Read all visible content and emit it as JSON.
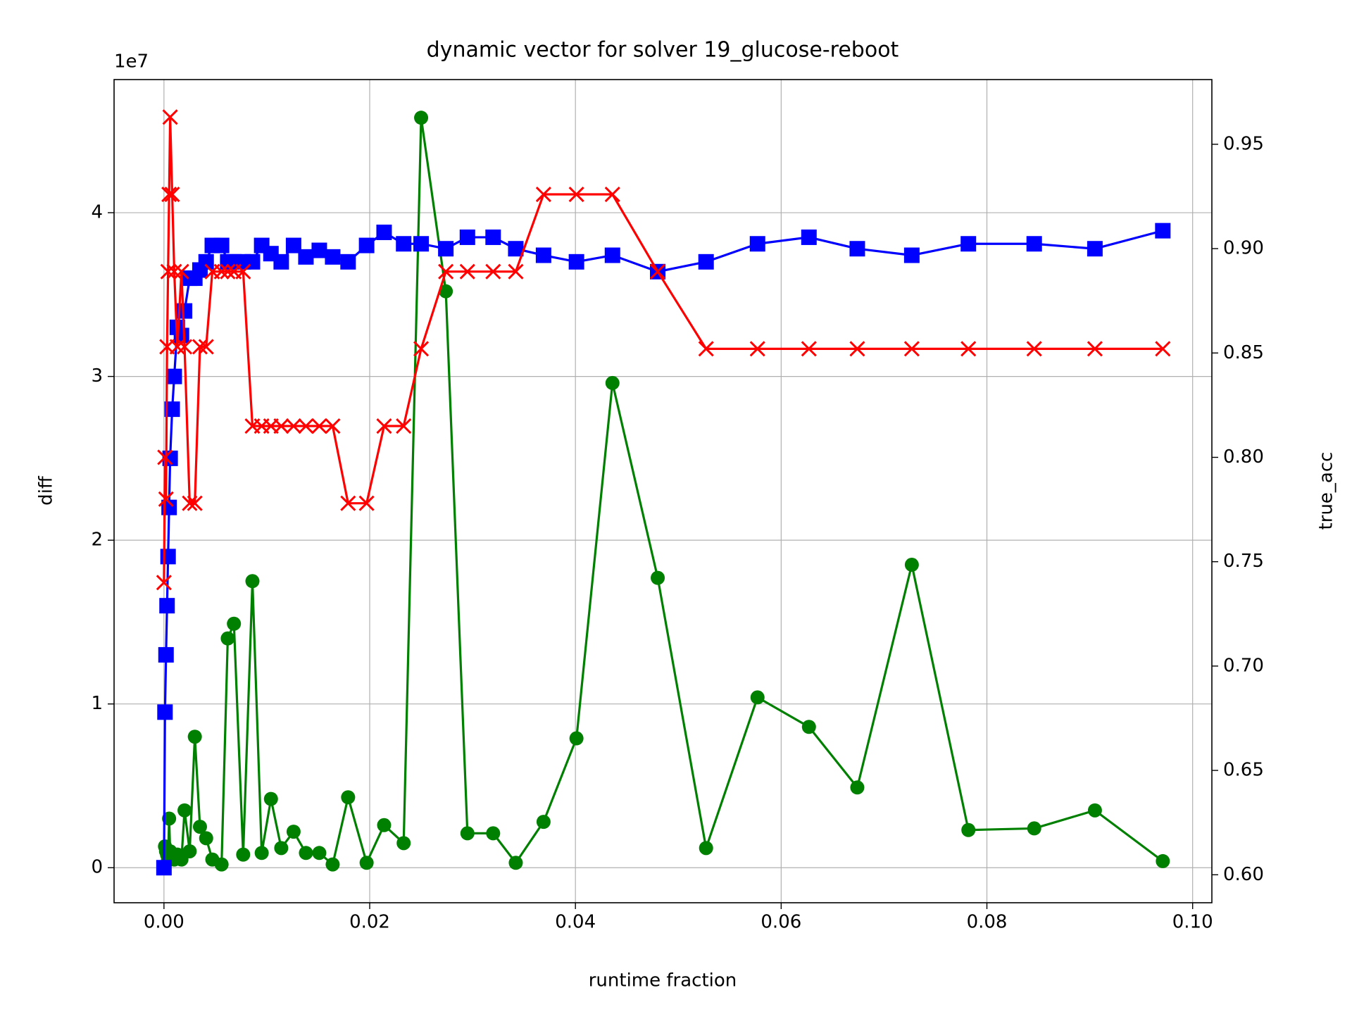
{
  "chart_data": {
    "type": "line",
    "title": "dynamic vector for solver 19_glucose-reboot",
    "xlabel": "runtime fraction",
    "ylabel": "diff",
    "ylabel_color": "green",
    "y2label": "true_acc",
    "y2label_color": "red",
    "y_offset_label": "1e7",
    "grid": true,
    "x": [
      0.0,
      0.0001,
      0.0002,
      0.0003,
      0.0004,
      0.0005,
      0.0006,
      0.0008,
      0.001,
      0.0013,
      0.0017,
      0.002,
      0.0025,
      0.003,
      0.0035,
      0.0041,
      0.0047,
      0.0056,
      0.0062,
      0.0068,
      0.0077,
      0.0086,
      0.0095,
      0.0104,
      0.0114,
      0.0126,
      0.0138,
      0.0151,
      0.0164,
      0.0179,
      0.0197,
      0.0214,
      0.0233,
      0.025,
      0.0274,
      0.0295,
      0.032,
      0.0342,
      0.0369,
      0.0401,
      0.0436,
      0.048,
      0.0527,
      0.0577,
      0.0627,
      0.0674,
      0.0727,
      0.0782,
      0.0846,
      0.0905,
      0.0971
    ],
    "series": [
      {
        "color": "green",
        "marker": "circle",
        "axis": "y",
        "values": [
          0.0,
          0.13,
          0.1,
          0.08,
          0.05,
          0.3,
          0.1,
          0.06,
          0.05,
          0.08,
          0.05,
          0.35,
          0.1,
          0.8,
          0.25,
          0.18,
          0.05,
          0.02,
          1.4,
          1.49,
          0.08,
          1.75,
          0.09,
          0.42,
          0.12,
          0.22,
          0.09,
          0.09,
          0.02,
          0.43,
          0.03,
          0.26,
          0.15,
          4.58,
          3.52,
          0.21,
          0.21,
          0.03,
          0.28,
          0.79,
          2.96,
          1.77,
          0.12,
          1.04,
          0.86,
          0.49,
          1.85,
          0.23,
          0.24,
          0.35,
          0.04
        ]
      },
      {
        "color": "blue",
        "marker": "square",
        "axis": "y",
        "values": [
          0.0,
          0.95,
          1.3,
          1.6,
          1.9,
          2.2,
          2.5,
          2.8,
          3.0,
          3.3,
          3.25,
          3.4,
          3.6,
          3.6,
          3.65,
          3.7,
          3.8,
          3.8,
          3.7,
          3.7,
          3.7,
          3.7,
          3.8,
          3.75,
          3.7,
          3.8,
          3.73,
          3.77,
          3.73,
          3.7,
          3.8,
          3.88,
          3.81,
          3.81,
          3.78,
          3.85,
          3.85,
          3.78,
          3.74,
          3.7,
          3.74,
          3.64,
          3.7,
          3.81,
          3.85,
          3.78,
          3.74,
          3.81,
          3.81,
          3.78,
          3.89
        ]
      },
      {
        "color": "red",
        "marker": "x",
        "axis": "y2",
        "values": [
          0.74,
          0.8,
          0.78,
          0.853,
          0.889,
          0.926,
          0.963,
          0.926,
          0.889,
          0.853,
          0.889,
          0.853,
          0.778,
          0.778,
          0.853,
          0.853,
          0.889,
          0.889,
          0.889,
          0.889,
          0.889,
          0.815,
          0.815,
          0.815,
          0.815,
          0.815,
          0.815,
          0.815,
          0.815,
          0.778,
          0.778,
          0.815,
          0.815,
          0.852,
          0.889,
          0.889,
          0.889,
          0.889,
          0.926,
          0.926,
          0.926,
          0.889,
          0.852,
          0.852,
          0.852,
          0.852,
          0.852,
          0.852,
          0.852,
          0.852,
          0.852
        ]
      }
    ],
    "xlim": [
      -0.00485,
      0.10187
    ],
    "xticks": [
      {
        "value": 0,
        "label": "0.00"
      },
      {
        "value": 0.02,
        "label": "0.02"
      },
      {
        "value": 0.04,
        "label": "0.04"
      },
      {
        "value": 0.06,
        "label": "0.06"
      },
      {
        "value": 0.08,
        "label": "0.08"
      },
      {
        "value": 0.1,
        "label": "0.10"
      }
    ],
    "ylim": [
      -0.214,
      4.813
    ],
    "yticks": [
      0,
      1,
      2,
      3,
      4
    ],
    "y2lim": [
      0.5866,
      0.981
    ],
    "y2ticks": [
      {
        "value": 0.6,
        "label": "0.60"
      },
      {
        "value": 0.65,
        "label": "0.65"
      },
      {
        "value": 0.7,
        "label": "0.70"
      },
      {
        "value": 0.75,
        "label": "0.75"
      },
      {
        "value": 0.8,
        "label": "0.80"
      },
      {
        "value": 0.85,
        "label": "0.85"
      },
      {
        "value": 0.9,
        "label": "0.90"
      },
      {
        "value": 0.95,
        "label": "0.95"
      }
    ]
  }
}
